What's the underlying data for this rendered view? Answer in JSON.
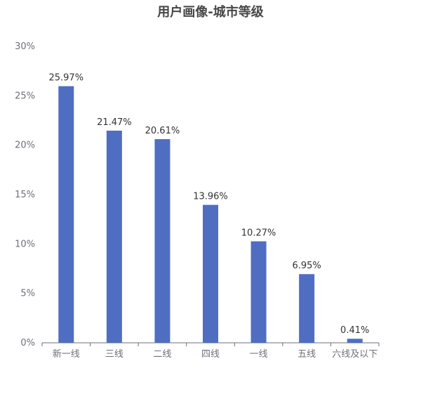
{
  "chart_data": {
    "type": "bar",
    "title": "用户画像-城市等级",
    "categories": [
      "新一线",
      "三线",
      "二线",
      "四线",
      "一线",
      "五线",
      "六线及以下"
    ],
    "values": [
      25.97,
      21.47,
      20.61,
      13.96,
      10.27,
      6.95,
      0.41
    ],
    "value_labels": [
      "25.97%",
      "21.47%",
      "20.61%",
      "13.96%",
      "10.27%",
      "6.95%",
      "0.41%"
    ],
    "y_ticks": [
      "0%",
      "5%",
      "10%",
      "15%",
      "20%",
      "25%",
      "30%"
    ],
    "ylim": [
      0,
      30
    ],
    "xlabel": "",
    "ylabel": "",
    "grid": false,
    "colors": {
      "bar": "#4F6EC2",
      "axis": "#6e7079",
      "title": "#464646"
    }
  }
}
